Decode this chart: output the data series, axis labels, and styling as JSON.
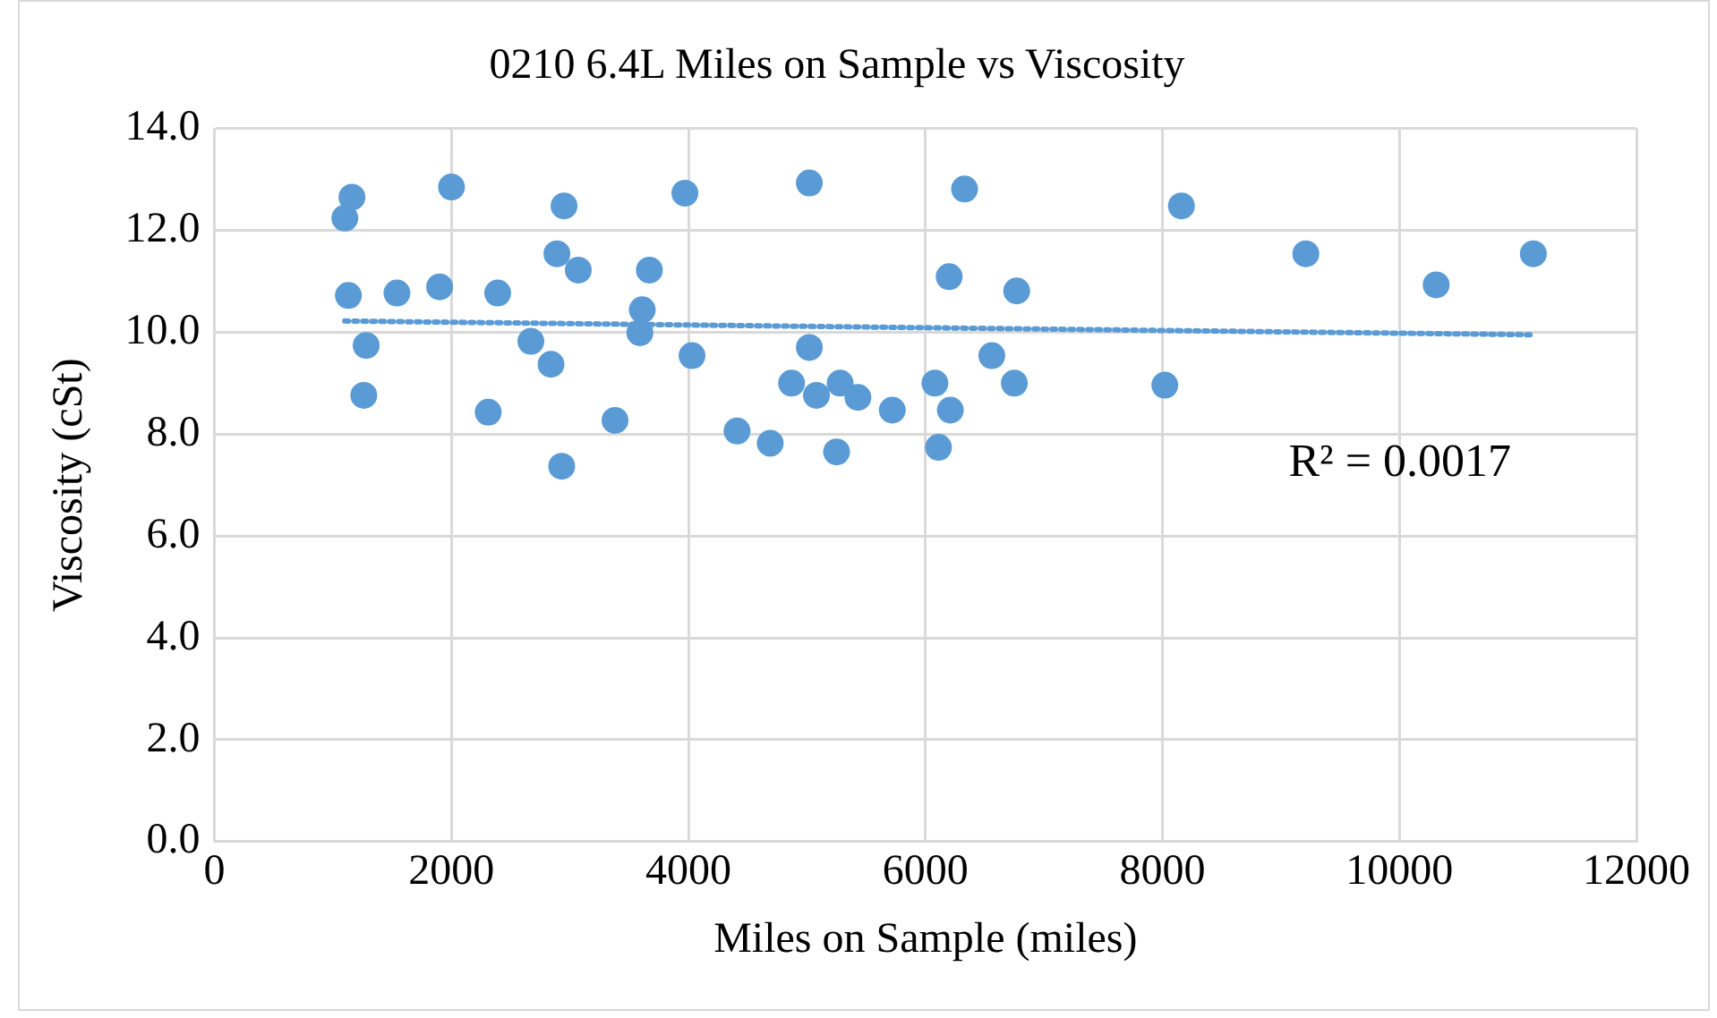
{
  "chart_data": {
    "type": "scatter",
    "title": "0210 6.4L Miles on Sample vs Viscosity",
    "xlabel": "Miles on Sample (miles)",
    "ylabel": "Viscosity (cSt)",
    "xlim": [
      0,
      12000
    ],
    "xticks": [
      0,
      2000,
      4000,
      6000,
      8000,
      10000,
      12000
    ],
    "ylim": [
      0,
      14
    ],
    "yticks": [
      {
        "value": 0,
        "label": "0.0"
      },
      {
        "value": 2,
        "label": "2.0"
      },
      {
        "value": 4,
        "label": "4.0"
      },
      {
        "value": 6,
        "label": "6.0"
      },
      {
        "value": 8,
        "label": "8.0"
      },
      {
        "value": 10,
        "label": "10.0"
      },
      {
        "value": 12,
        "label": "12.0"
      },
      {
        "value": 14,
        "label": "14.0"
      }
    ],
    "grid": true,
    "legend": false,
    "marker": "circle",
    "annotations": [
      "R² = 0.0017"
    ],
    "series": [
      {
        "type": "scatter",
        "color": "#5b9bd5",
        "x": [
          1100,
          1160,
          1130,
          1280,
          1260,
          1540,
          1900,
          2000,
          2310,
          2390,
          2670,
          2840,
          2890,
          2930,
          2950,
          3070,
          3380,
          3610,
          3590,
          3670,
          3970,
          4030,
          4410,
          4690,
          4870,
          5020,
          5020,
          5080,
          5250,
          5280,
          5430,
          5720,
          6080,
          6110,
          6200,
          6210,
          6330,
          6560,
          6750,
          6770,
          8020,
          8160,
          9210,
          10310,
          11130
        ],
        "values": [
          12.24,
          12.65,
          10.72,
          9.74,
          8.76,
          10.77,
          10.89,
          12.85,
          8.43,
          10.77,
          9.82,
          9.37,
          11.54,
          7.37,
          12.48,
          11.22,
          8.27,
          10.44,
          9.99,
          11.22,
          12.73,
          9.54,
          8.06,
          7.82,
          9.0,
          12.93,
          9.7,
          8.76,
          7.65,
          9.0,
          8.72,
          8.47,
          9.0,
          7.74,
          11.09,
          8.47,
          12.81,
          9.54,
          9.0,
          10.81,
          8.96,
          12.48,
          11.54,
          10.93,
          11.54
        ]
      },
      {
        "type": "line",
        "color": "#5b9bd5",
        "line_style": "dotted",
        "marker": "none",
        "x": [
          1100,
          11130
        ],
        "values": [
          10.22,
          9.95
        ]
      }
    ]
  }
}
